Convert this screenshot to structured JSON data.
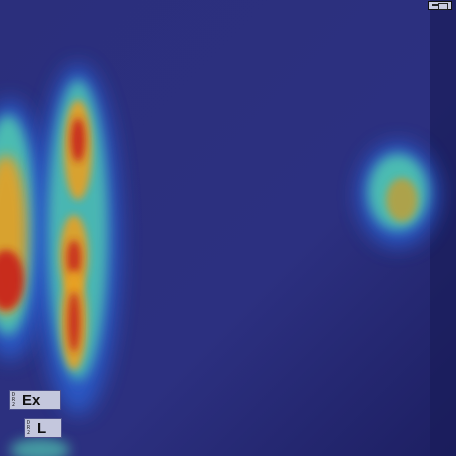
{
  "image": {
    "description_type": "radiograph with heatmap overlay",
    "colors": {
      "base": "#2a2f7a",
      "hot": "#c8281e",
      "warm": "#e8a020",
      "mid": "#4fc7b0",
      "cool": "#2a5fd0"
    }
  },
  "markers": {
    "ex": {
      "small": "DR2",
      "big": "Ex"
    },
    "l": {
      "small": "DR2",
      "big": "L"
    }
  }
}
